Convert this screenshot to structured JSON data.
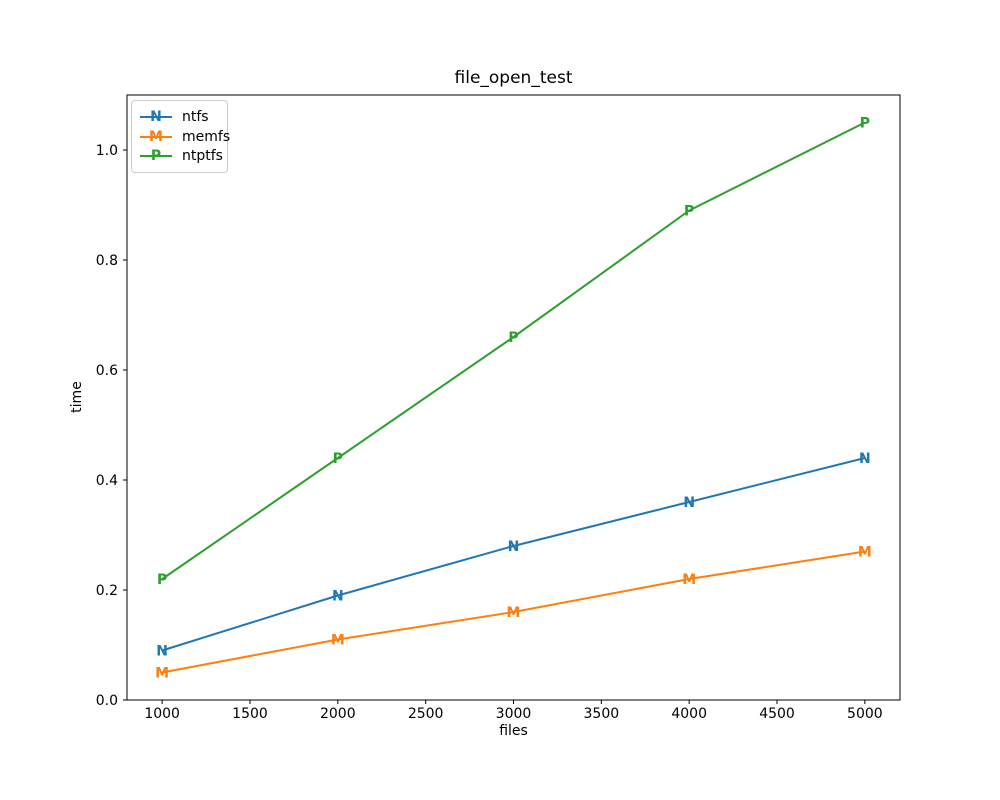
{
  "chart_data": {
    "type": "line",
    "title": "file_open_test",
    "xlabel": "files",
    "ylabel": "time",
    "x": [
      1000,
      2000,
      3000,
      4000,
      5000
    ],
    "series": [
      {
        "name": "ntfs",
        "marker": "N",
        "color": "#1f77b4",
        "values": [
          0.09,
          0.19,
          0.28,
          0.36,
          0.44
        ]
      },
      {
        "name": "memfs",
        "marker": "M",
        "color": "#ff7f0e",
        "values": [
          0.05,
          0.11,
          0.16,
          0.22,
          0.27
        ]
      },
      {
        "name": "ntptfs",
        "marker": "P",
        "color": "#2ca02c",
        "values": [
          0.22,
          0.44,
          0.66,
          0.89,
          1.05
        ]
      }
    ],
    "xlim": [
      800,
      5200
    ],
    "ylim": [
      0,
      1.1
    ],
    "xticks": [
      1000,
      1500,
      2000,
      2500,
      3000,
      3500,
      4000,
      4500,
      5000
    ],
    "xtick_labels": [
      "1000",
      "1500",
      "2000",
      "2500",
      "3000",
      "3500",
      "4000",
      "4500",
      "5000"
    ],
    "yticks": [
      0.0,
      0.2,
      0.4,
      0.6,
      0.8,
      1.0
    ],
    "ytick_labels": [
      "0.0",
      "0.2",
      "0.4",
      "0.6",
      "0.8",
      "1.0"
    ],
    "grid": false,
    "legend_position": "upper left",
    "axis_color": "#000000",
    "background_color": "#ffffff"
  }
}
